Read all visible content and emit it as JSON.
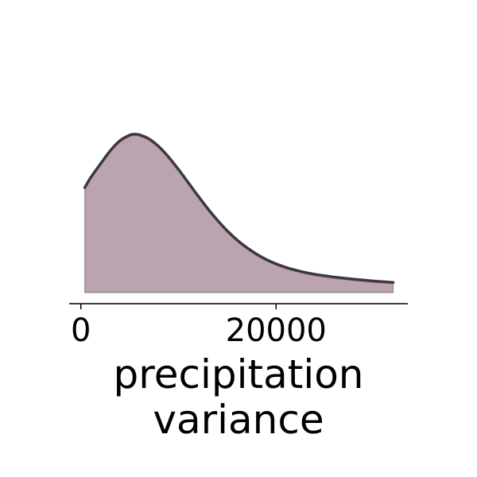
{
  "chart_data": {
    "type": "area",
    "xlabel_lines": [
      "precipitation",
      "variance"
    ],
    "ylabel": "",
    "xlim": [
      -1200,
      33500
    ],
    "ylim": [
      0,
      1.0
    ],
    "xticks": [
      0,
      20000
    ],
    "xtick_labels": [
      "0",
      "20000"
    ],
    "yticks_visible": false,
    "grid": false,
    "legend": "none",
    "series": [
      {
        "fill_color": "#a68b9a",
        "line_color": "#3a3a40",
        "secondary_line_color": "#c07aa4",
        "x": [
          400,
          1000,
          2000,
          3000,
          4000,
          5000,
          5500,
          6000,
          7000,
          8000,
          9000,
          10000,
          11000,
          12000,
          13000,
          14000,
          15000,
          16000,
          17000,
          18000,
          19000,
          20000,
          21000,
          22000,
          23000,
          24000,
          25000,
          26000,
          27000,
          28000,
          29000,
          30000,
          31000,
          32000
        ],
        "y": [
          0.6,
          0.657,
          0.735,
          0.81,
          0.868,
          0.9,
          0.905,
          0.902,
          0.878,
          0.834,
          0.774,
          0.704,
          0.629,
          0.553,
          0.48,
          0.413,
          0.353,
          0.301,
          0.257,
          0.22,
          0.189,
          0.164,
          0.144,
          0.128,
          0.115,
          0.104,
          0.096,
          0.088,
          0.082,
          0.076,
          0.071,
          0.066,
          0.062,
          0.058
        ]
      }
    ]
  }
}
